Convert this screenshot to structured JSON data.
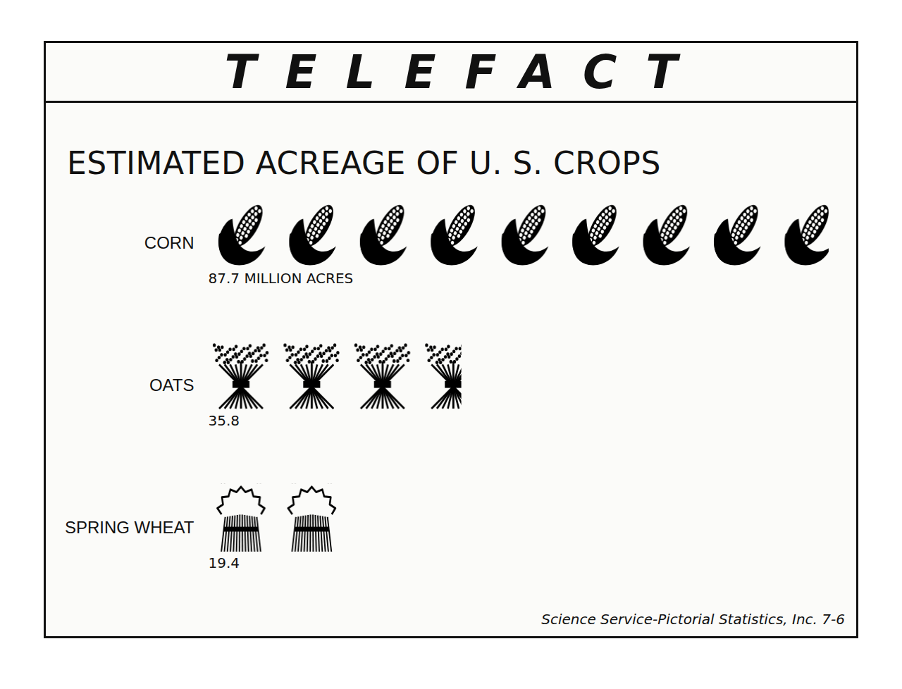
{
  "chart_data": {
    "type": "bar",
    "orientation": "horizontal",
    "header": "TELEFACT",
    "title": "ESTIMATED ACREAGE OF U. S. CROPS",
    "categories": [
      "CORN",
      "OATS",
      "SPRING WHEAT"
    ],
    "values": [
      87.7,
      35.8,
      19.4
    ],
    "value_labels": [
      "87.7 MILLION ACRES",
      "35.8",
      "19.4"
    ],
    "data_labels": true,
    "color": "#000000",
    "marker": "icons",
    "xlim": [
      0,
      90
    ],
    "tick_labels": "y",
    "grid": false,
    "source": "Science Service-Pictorial Statistics, Inc. 7-6"
  }
}
